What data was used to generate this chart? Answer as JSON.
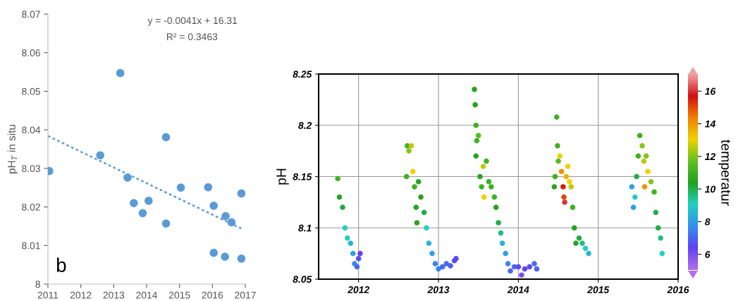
{
  "chart_data": [
    {
      "type": "scatter",
      "ylabel": "pH$_{T}$ in situ",
      "xlim": [
        2011,
        2017
      ],
      "xticks": [
        2011,
        2012,
        2013,
        2014,
        2015,
        2016,
        2017
      ],
      "ylim": [
        8,
        8.07
      ],
      "yticks": [
        8,
        8.01,
        8.02,
        8.03,
        8.04,
        8.05,
        8.06,
        8.07
      ],
      "grid": false,
      "marker": "circle",
      "legend": false,
      "annotations": [
        "y = -0.0041x + 16.31",
        "R² = 0.3463",
        "b"
      ],
      "series": [
        {
          "type": "scatter",
          "color": "#5b9bd5",
          "x": [
            2011.04,
            2012.59,
            2013.2,
            2013.42,
            2013.61,
            2013.88,
            2014.06,
            2014.59,
            2014.59,
            2015.04,
            2015.87,
            2016.04,
            2016.04,
            2016.4,
            2016.38,
            2016.58,
            2016.88,
            2016.88
          ],
          "values": [
            8.0293,
            8.0334,
            8.0547,
            8.0276,
            8.021,
            8.0184,
            8.0216,
            8.0381,
            8.0157,
            8.025,
            8.0251,
            8.0203,
            8.0081,
            8.0176,
            8.0071,
            8.016,
            8.0235,
            8.0066
          ]
        },
        {
          "type": "line",
          "color": "#5b9bd5",
          "line_style": "dotted",
          "marker": "none",
          "x": [
            2011,
            2016.88
          ],
          "values": [
            8.0384,
            8.0144
          ]
        }
      ]
    },
    {
      "type": "scatter",
      "ylabel": "pH",
      "clabel": "temperatur",
      "xlim": [
        2011.5,
        2016
      ],
      "xticks": [
        2012,
        2013,
        2014,
        2015,
        2016
      ],
      "ylim": [
        8.05,
        8.25
      ],
      "yticks": [
        8.05,
        8.1,
        8.15,
        8.2,
        8.25
      ],
      "clim": [
        5,
        17
      ],
      "cticks": [
        6,
        8,
        10,
        12,
        14,
        16
      ],
      "grid": true,
      "marker": "circle",
      "x": [
        2011.74,
        2011.76,
        2011.8,
        2011.83,
        2011.86,
        2011.9,
        2011.93,
        2011.95,
        2011.98,
        2012.0,
        2012.02,
        2012.6,
        2012.61,
        2012.63,
        2012.66,
        2012.68,
        2012.7,
        2012.72,
        2012.73,
        2012.75,
        2012.78,
        2012.82,
        2012.85,
        2012.88,
        2012.92,
        2012.96,
        2013.0,
        2013.05,
        2013.1,
        2013.15,
        2013.2,
        2013.22,
        2013.45,
        2013.46,
        2013.47,
        2013.48,
        2013.47,
        2013.5,
        2013.52,
        2013.54,
        2013.56,
        2013.57,
        2013.6,
        2013.63,
        2013.66,
        2013.7,
        2013.72,
        2013.75,
        2013.78,
        2013.8,
        2013.84,
        2013.87,
        2013.9,
        2013.95,
        2014.0,
        2014.04,
        2014.08,
        2014.14,
        2014.2,
        2014.23,
        2014.45,
        2014.46,
        2014.48,
        2014.49,
        2014.5,
        2014.52,
        2014.54,
        2014.56,
        2014.57,
        2014.58,
        2014.6,
        2014.62,
        2014.64,
        2014.66,
        2014.68,
        2014.7,
        2014.72,
        2014.76,
        2014.8,
        2014.84,
        2014.88,
        2015.42,
        2015.44,
        2015.46,
        2015.48,
        2015.5,
        2015.52,
        2015.55,
        2015.57,
        2015.6,
        2015.62,
        2015.58,
        2015.66,
        2015.7,
        2015.72,
        2015.75,
        2015.78,
        2015.8
      ],
      "values": [
        8.148,
        8.13,
        8.12,
        8.1,
        8.09,
        8.085,
        8.075,
        8.065,
        8.062,
        8.07,
        8.075,
        8.15,
        8.18,
        8.175,
        8.18,
        8.155,
        8.14,
        8.12,
        8.105,
        8.145,
        8.13,
        8.115,
        8.1,
        8.085,
        8.075,
        8.065,
        8.06,
        8.062,
        8.065,
        8.063,
        8.068,
        8.07,
        8.235,
        8.22,
        8.2,
        8.185,
        8.17,
        8.19,
        8.15,
        8.14,
        8.16,
        8.13,
        8.165,
        8.145,
        8.14,
        8.13,
        8.12,
        8.105,
        8.095,
        8.085,
        8.075,
        8.065,
        8.058,
        8.062,
        8.062,
        8.054,
        8.06,
        8.062,
        8.065,
        8.06,
        8.14,
        8.15,
        8.208,
        8.18,
        8.165,
        8.17,
        8.155,
        8.14,
        8.13,
        8.125,
        8.15,
        8.16,
        8.145,
        8.14,
        8.12,
        8.1,
        8.085,
        8.09,
        8.085,
        8.08,
        8.075,
        8.14,
        8.12,
        8.13,
        8.15,
        8.17,
        8.19,
        8.18,
        8.165,
        8.17,
        8.155,
        8.14,
        8.145,
        8.135,
        8.115,
        8.1,
        8.09,
        8.075
      ],
      "cvalues": [
        11,
        10.5,
        10,
        9,
        9,
        8.5,
        8,
        7.5,
        7,
        6.5,
        6.3,
        11,
        11,
        12,
        12.5,
        13,
        11,
        10.5,
        10.5,
        10.5,
        10.5,
        10,
        9,
        8.5,
        8,
        7.5,
        7.5,
        7,
        7,
        6.8,
        6.5,
        6.5,
        10.5,
        10.5,
        11,
        11,
        10.5,
        11.5,
        10.5,
        11,
        12.5,
        13,
        11,
        11,
        11,
        11,
        10.5,
        10,
        9.5,
        8.5,
        8,
        7.5,
        7,
        7,
        6.5,
        6,
        6.3,
        6.5,
        7,
        7,
        10.5,
        11,
        11,
        11,
        11.5,
        13,
        14,
        15.5,
        15,
        16,
        13.5,
        13,
        13,
        12.5,
        11,
        10.5,
        10.5,
        10,
        9.5,
        9,
        8.5,
        8,
        8,
        9,
        10,
        11,
        11,
        12,
        12.5,
        12,
        13,
        14,
        12,
        11,
        10,
        10,
        9.5,
        9
      ]
    }
  ]
}
